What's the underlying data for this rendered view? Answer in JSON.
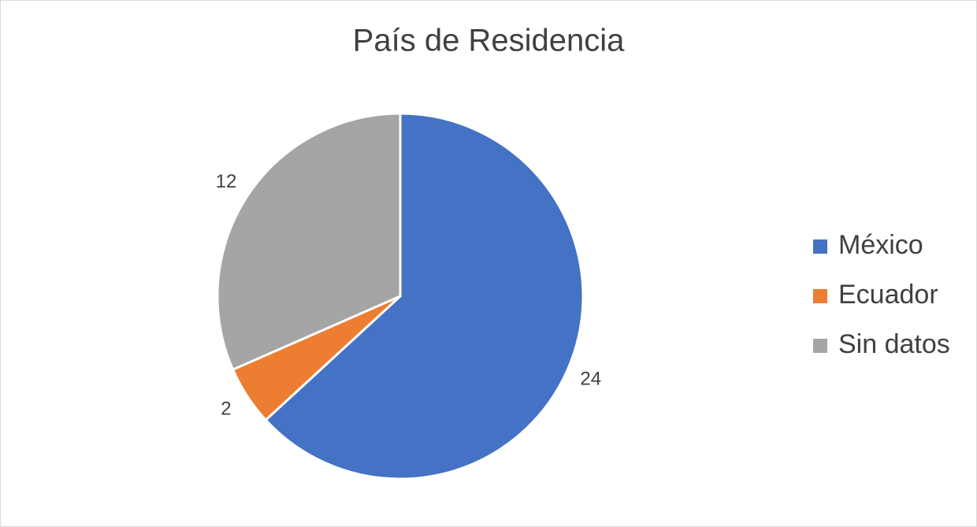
{
  "chart_data": {
    "type": "pie",
    "title": "País de Residencia",
    "categories": [
      "México",
      "Ecuador",
      "Sin datos"
    ],
    "values": [
      24,
      2,
      12
    ],
    "colors": [
      "#4472c4",
      "#ed7d31",
      "#a5a5a5"
    ],
    "legend": "right"
  }
}
